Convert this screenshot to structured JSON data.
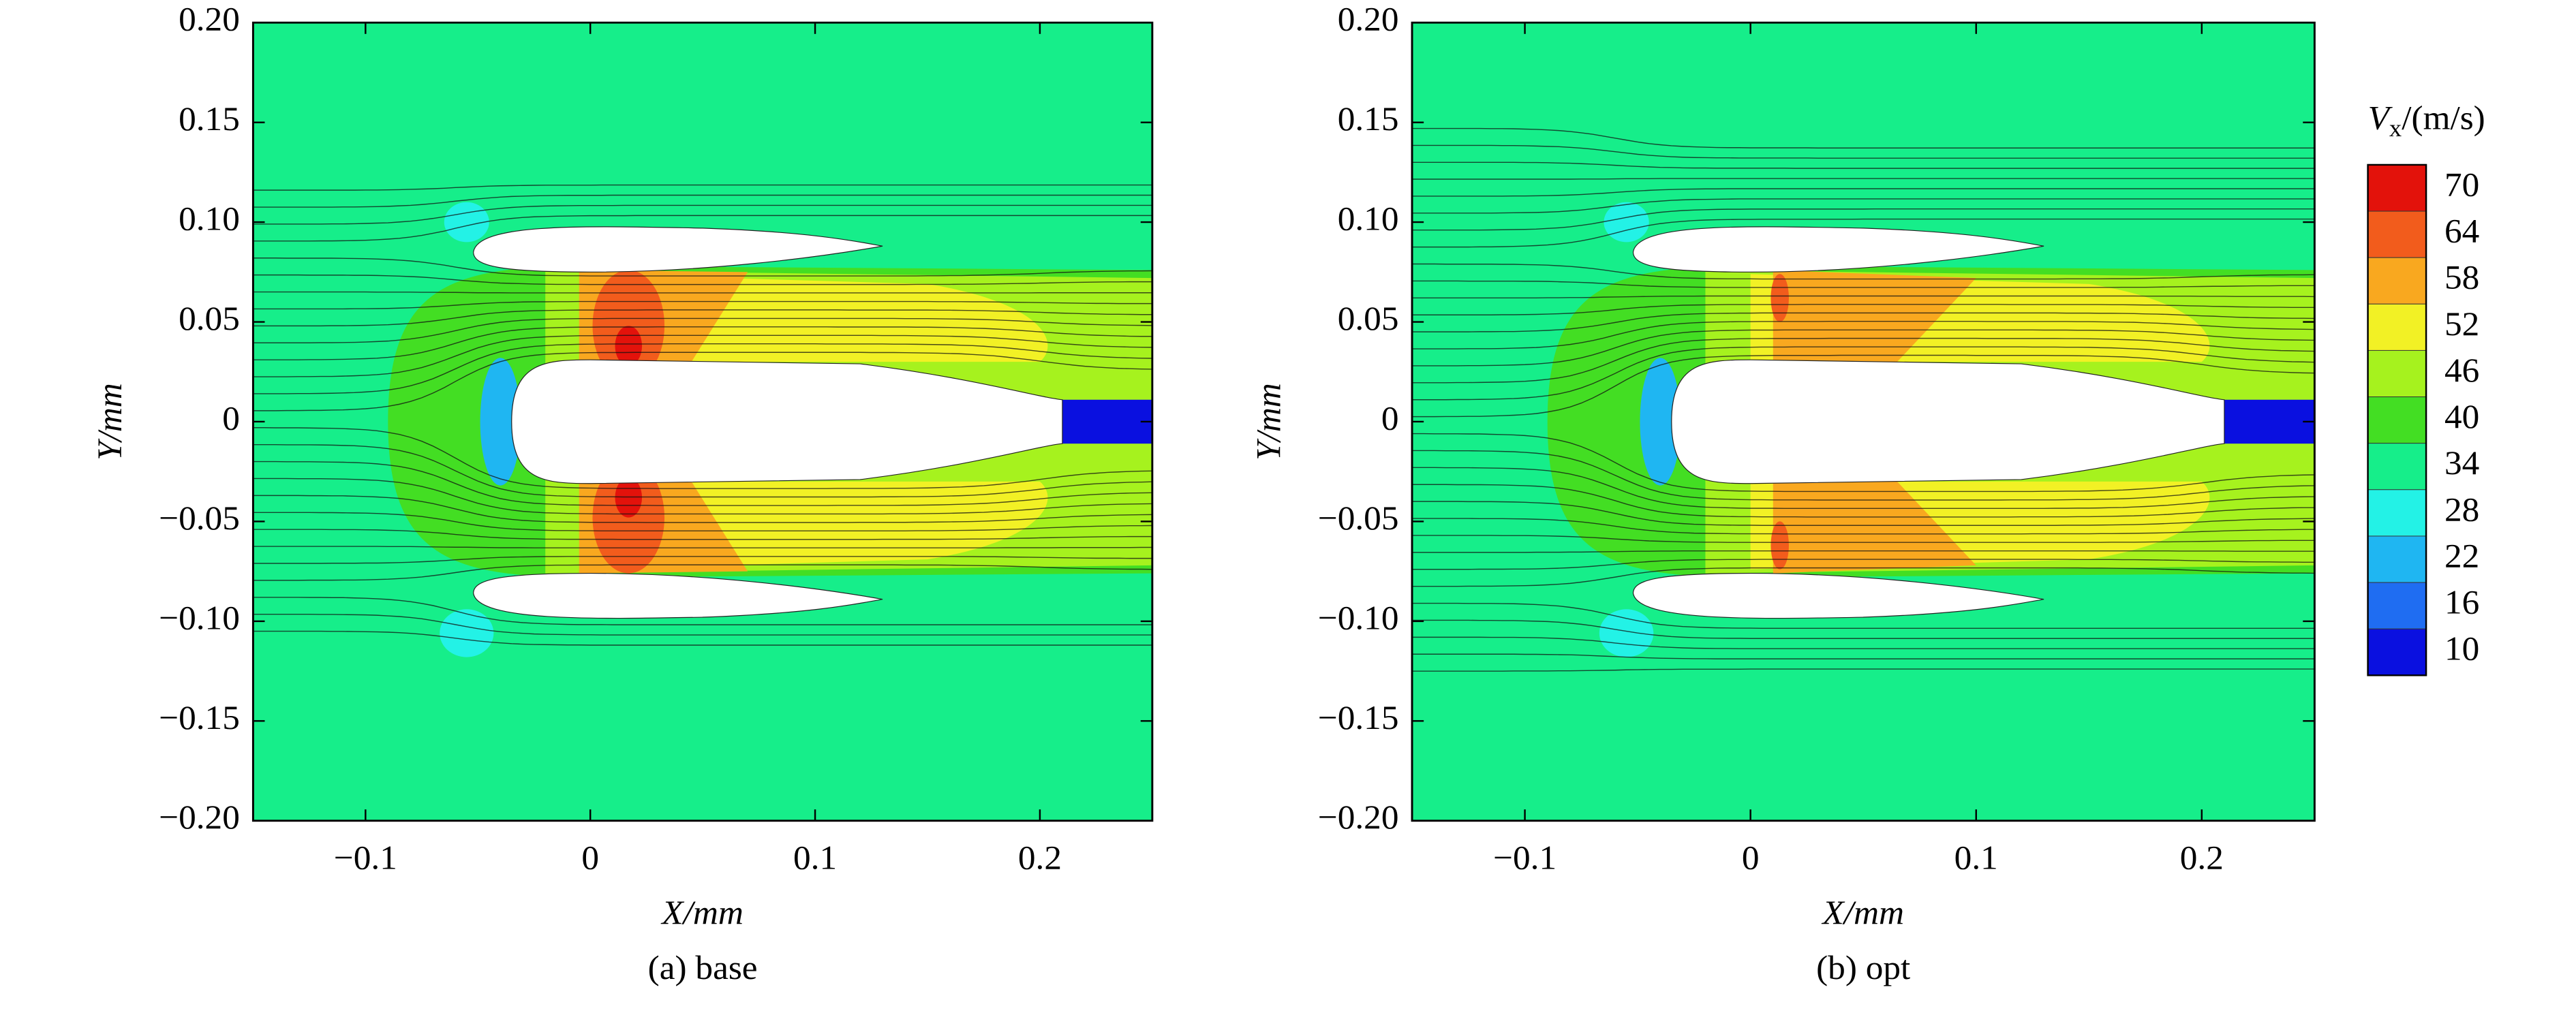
{
  "chart_data": [
    {
      "type": "contour",
      "caption": "(a) base",
      "xlabel": "X/mm",
      "ylabel": "Y/mm",
      "xlim": [
        -0.15,
        0.25
      ],
      "ylim": [
        -0.2,
        0.2
      ],
      "xticks": [
        {
          "value": -0.1,
          "label": "−0.1"
        },
        0,
        0.1,
        0.2
      ],
      "yticks": [
        {
          "value": -0.2,
          "label": "−0.20"
        },
        {
          "value": -0.15,
          "label": "−0.15"
        },
        {
          "value": -0.1,
          "label": "−0.10"
        },
        {
          "value": -0.05,
          "label": "−0.05"
        },
        0,
        0.05,
        {
          "value": 0.1,
          "label": "0.10"
        },
        0.15,
        {
          "value": 0.2,
          "label": "0.20"
        }
      ]
    },
    {
      "type": "contour",
      "caption": "(b) opt",
      "xlabel": "X/mm",
      "ylabel": "Y/mm",
      "xlim": [
        -0.15,
        0.25
      ],
      "ylim": [
        -0.2,
        0.2
      ],
      "xticks": [
        {
          "value": -0.1,
          "label": "−0.1"
        },
        0,
        0.1,
        0.2
      ],
      "yticks": [
        {
          "value": -0.2,
          "label": "−0.20"
        },
        {
          "value": -0.15,
          "label": "−0.15"
        },
        {
          "value": -0.1,
          "label": "−0.10"
        },
        {
          "value": -0.05,
          "label": "−0.05"
        },
        0,
        0.05,
        {
          "value": 0.1,
          "label": "0.10"
        },
        0.15,
        {
          "value": 0.2,
          "label": "0.20"
        }
      ]
    }
  ],
  "colorbar": {
    "title_symbol": "V",
    "title_subscript": "x",
    "title_unit": "/(m/s)",
    "levels": [
      70,
      64,
      58,
      52,
      46,
      40,
      34,
      28,
      22,
      16,
      10
    ],
    "colors": [
      "#e3120b",
      "#f25c1c",
      "#f9a81f",
      "#f2f125",
      "#a6f21e",
      "#43de23",
      "#16ee8a",
      "#23f2e6",
      "#1fb6f2",
      "#1f6df2",
      "#0a10e0"
    ]
  }
}
